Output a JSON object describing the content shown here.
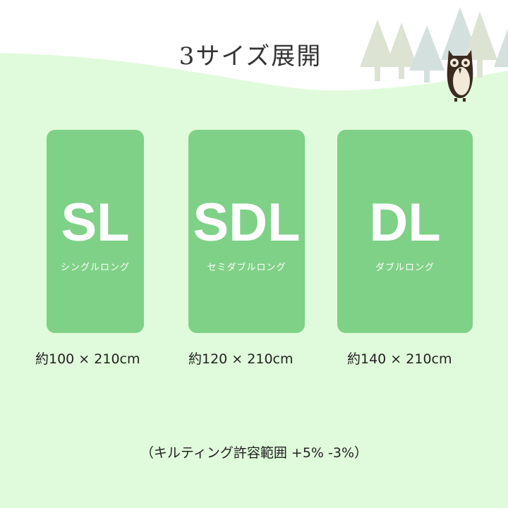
{
  "title": "3サイズ展開",
  "sizes": [
    {
      "abbr": "SL",
      "name": "シングルロング",
      "dimensions": "約100 × 210cm"
    },
    {
      "abbr": "SDL",
      "name": "セミダブルロング",
      "dimensions": "約120 × 210cm"
    },
    {
      "abbr": "DL",
      "name": "ダブルロング",
      "dimensions": "約140 × 210cm"
    }
  ],
  "note": "（キルティング許容範囲 +5% -3%）",
  "colors": {
    "background": "#e0fbdb",
    "card": "#7fd187",
    "top": "#ffffff"
  },
  "decorations": [
    "tree-icon",
    "owl-icon"
  ]
}
